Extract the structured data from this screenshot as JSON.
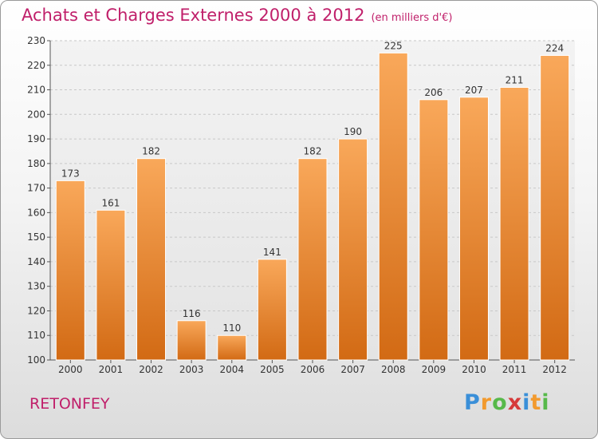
{
  "title": "Achats et Charges Externes 2000 à 2012",
  "subtitle": "(en milliers d'€)",
  "commune": "RETONFEY",
  "logo": {
    "letters": [
      "P",
      "r",
      "o",
      "x",
      "i",
      "t",
      "i"
    ],
    "colors": [
      "#3a8fd8",
      "#f29a2e",
      "#57b94a",
      "#d63a3a",
      "#3a8fd8",
      "#f29a2e",
      "#57b94a"
    ]
  },
  "chart_data": {
    "type": "bar",
    "categories": [
      "2000",
      "2001",
      "2002",
      "2003",
      "2004",
      "2005",
      "2006",
      "2007",
      "2008",
      "2009",
      "2010",
      "2011",
      "2012"
    ],
    "values": [
      173,
      161,
      182,
      116,
      110,
      141,
      182,
      190,
      225,
      206,
      207,
      211,
      224
    ],
    "ylim": [
      100,
      230
    ],
    "yticks": [
      100,
      110,
      120,
      130,
      140,
      150,
      160,
      170,
      180,
      190,
      200,
      210,
      220,
      230
    ],
    "grid": true,
    "bar_color": "#f0932e"
  }
}
